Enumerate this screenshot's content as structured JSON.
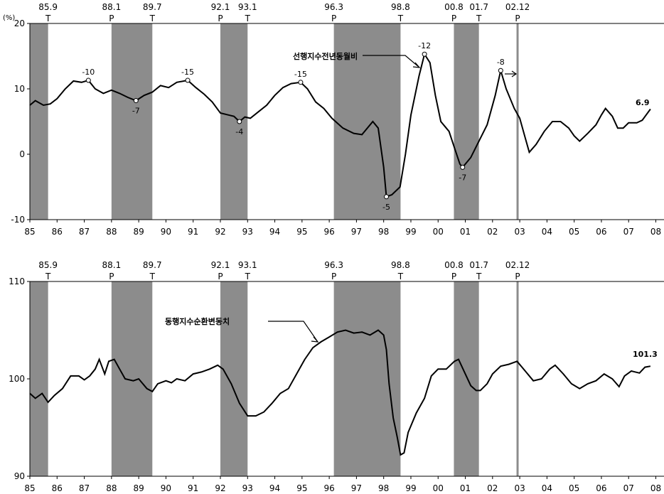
{
  "chart_data": [
    {
      "type": "line",
      "y_unit": "(%)",
      "xlim": [
        1985,
        2008.3
      ],
      "ylim": [
        -10,
        20
      ],
      "y_ticks": [
        -10,
        0,
        10,
        20
      ],
      "x_tick_labels": [
        "85",
        "86",
        "87",
        "88",
        "89",
        "90",
        "91",
        "92",
        "93",
        "94",
        "95",
        "96",
        "97",
        "98",
        "99",
        "00",
        "01",
        "02",
        "03",
        "04",
        "05",
        "06",
        "07",
        "08"
      ],
      "series_label": "선행지수전년동월비",
      "end_label": "6.9",
      "cycle_markers": [
        {
          "label": "85.9",
          "type": "T",
          "t": 1985.67
        },
        {
          "label": "88.1",
          "type": "P",
          "t": 1988.0
        },
        {
          "label": "89.7",
          "type": "T",
          "t": 1989.5
        },
        {
          "label": "92.1",
          "type": "P",
          "t": 1992.0
        },
        {
          "label": "93.1",
          "type": "T",
          "t": 1993.0
        },
        {
          "label": "96.3",
          "type": "P",
          "t": 1996.17
        },
        {
          "label": "98.8",
          "type": "T",
          "t": 1998.62
        },
        {
          "label": "00.8",
          "type": "P",
          "t": 2000.58
        },
        {
          "label": "01.7",
          "type": "T",
          "t": 2001.5
        },
        {
          "label": "02.12",
          "type": "P",
          "t": 2002.92
        }
      ],
      "annotations": [
        {
          "text": "-10",
          "t": 1987.15,
          "v": 11.3,
          "pos": "above"
        },
        {
          "text": "-7",
          "t": 1988.9,
          "v": 8.2,
          "pos": "below"
        },
        {
          "text": "-15",
          "t": 1990.8,
          "v": 11.3,
          "pos": "above"
        },
        {
          "text": "-4",
          "t": 1992.7,
          "v": 5.0,
          "pos": "below"
        },
        {
          "text": "-15",
          "t": 1994.95,
          "v": 11.0,
          "pos": "above"
        },
        {
          "text": "-5",
          "t": 1998.1,
          "v": -6.5,
          "pos": "below"
        },
        {
          "text": "-12",
          "t": 1999.5,
          "v": 15.3,
          "pos": "above"
        },
        {
          "text": "-7",
          "t": 2000.9,
          "v": -2.0,
          "pos": "below"
        },
        {
          "text": "-8",
          "t": 2002.3,
          "v": 12.8,
          "pos": "above"
        }
      ],
      "series": [
        {
          "values": [
            [
              1985.0,
              7.5
            ],
            [
              1985.2,
              8.2
            ],
            [
              1985.5,
              7.5
            ],
            [
              1985.75,
              7.7
            ],
            [
              1986.0,
              8.5
            ],
            [
              1986.3,
              10.0
            ],
            [
              1986.6,
              11.2
            ],
            [
              1986.9,
              11.0
            ],
            [
              1987.15,
              11.3
            ],
            [
              1987.4,
              10.0
            ],
            [
              1987.7,
              9.3
            ],
            [
              1988.0,
              9.8
            ],
            [
              1988.3,
              9.3
            ],
            [
              1988.6,
              8.7
            ],
            [
              1988.9,
              8.2
            ],
            [
              1989.2,
              9.0
            ],
            [
              1989.5,
              9.5
            ],
            [
              1989.8,
              10.5
            ],
            [
              1990.1,
              10.2
            ],
            [
              1990.4,
              11.0
            ],
            [
              1990.8,
              11.3
            ],
            [
              1991.1,
              10.2
            ],
            [
              1991.4,
              9.2
            ],
            [
              1991.7,
              8.0
            ],
            [
              1992.0,
              6.3
            ],
            [
              1992.3,
              6.0
            ],
            [
              1992.5,
              5.8
            ],
            [
              1992.7,
              5.0
            ],
            [
              1992.9,
              5.7
            ],
            [
              1993.1,
              5.5
            ],
            [
              1993.4,
              6.5
            ],
            [
              1993.7,
              7.5
            ],
            [
              1994.0,
              9.0
            ],
            [
              1994.3,
              10.2
            ],
            [
              1994.6,
              10.8
            ],
            [
              1994.95,
              11.0
            ],
            [
              1995.2,
              10.0
            ],
            [
              1995.5,
              8.0
            ],
            [
              1995.8,
              7.0
            ],
            [
              1996.1,
              5.5
            ],
            [
              1996.5,
              4.0
            ],
            [
              1996.9,
              3.2
            ],
            [
              1997.2,
              3.0
            ],
            [
              1997.6,
              5.0
            ],
            [
              1997.8,
              4.0
            ],
            [
              1998.0,
              -2.0
            ],
            [
              1998.1,
              -6.5
            ],
            [
              1998.3,
              -6.2
            ],
            [
              1998.6,
              -5.0
            ],
            [
              1998.8,
              0.0
            ],
            [
              1999.0,
              6.0
            ],
            [
              1999.3,
              12.0
            ],
            [
              1999.5,
              15.3
            ],
            [
              1999.7,
              14.0
            ],
            [
              1999.9,
              9.0
            ],
            [
              2000.1,
              5.0
            ],
            [
              2000.4,
              3.5
            ],
            [
              2000.6,
              1.0
            ],
            [
              2000.8,
              -1.5
            ],
            [
              2000.9,
              -2.0
            ],
            [
              2001.2,
              -0.5
            ],
            [
              2001.5,
              2.0
            ],
            [
              2001.8,
              4.5
            ],
            [
              2002.1,
              9.0
            ],
            [
              2002.3,
              12.8
            ],
            [
              2002.5,
              10.0
            ],
            [
              2002.8,
              7.0
            ],
            [
              2003.0,
              5.5
            ],
            [
              2003.2,
              2.5
            ],
            [
              2003.35,
              0.3
            ],
            [
              2003.6,
              1.5
            ],
            [
              2003.9,
              3.5
            ],
            [
              2004.2,
              5.0
            ],
            [
              2004.5,
              5.0
            ],
            [
              2004.8,
              4.0
            ],
            [
              2005.0,
              2.8
            ],
            [
              2005.2,
              2.0
            ],
            [
              2005.5,
              3.2
            ],
            [
              2005.8,
              4.5
            ],
            [
              2006.0,
              6.0
            ],
            [
              2006.15,
              7.0
            ],
            [
              2006.4,
              5.8
            ],
            [
              2006.6,
              4.0
            ],
            [
              2006.8,
              4.0
            ],
            [
              2007.0,
              4.8
            ],
            [
              2007.3,
              4.8
            ],
            [
              2007.5,
              5.2
            ],
            [
              2007.8,
              6.9
            ]
          ]
        }
      ]
    },
    {
      "type": "line",
      "xlim": [
        1985,
        2008.3
      ],
      "ylim": [
        90,
        110
      ],
      "y_ticks": [
        90,
        100,
        110
      ],
      "x_tick_labels": [
        "85",
        "86",
        "87",
        "88",
        "89",
        "90",
        "91",
        "92",
        "93",
        "94",
        "95",
        "96",
        "97",
        "98",
        "99",
        "00",
        "01",
        "02",
        "03",
        "04",
        "05",
        "06",
        "07",
        "08"
      ],
      "series_label": "동행지수순환변동치",
      "end_label": "101.3",
      "cycle_markers": [
        {
          "label": "85.9",
          "type": "T",
          "t": 1985.67
        },
        {
          "label": "88.1",
          "type": "P",
          "t": 1988.0
        },
        {
          "label": "89.7",
          "type": "T",
          "t": 1989.5
        },
        {
          "label": "92.1",
          "type": "P",
          "t": 1992.0
        },
        {
          "label": "93.1",
          "type": "T",
          "t": 1993.0
        },
        {
          "label": "96.3",
          "type": "P",
          "t": 1996.17
        },
        {
          "label": "98.8",
          "type": "T",
          "t": 1998.62
        },
        {
          "label": "00.8",
          "type": "P",
          "t": 2000.58
        },
        {
          "label": "01.7",
          "type": "T",
          "t": 2001.5
        },
        {
          "label": "02.12",
          "type": "P",
          "t": 2002.92
        }
      ],
      "series": [
        {
          "values": [
            [
              1985.0,
              98.5
            ],
            [
              1985.2,
              98.0
            ],
            [
              1985.45,
              98.5
            ],
            [
              1985.67,
              97.6
            ],
            [
              1985.9,
              98.3
            ],
            [
              1986.2,
              99.0
            ],
            [
              1986.5,
              100.3
            ],
            [
              1986.8,
              100.3
            ],
            [
              1987.0,
              99.9
            ],
            [
              1987.2,
              100.3
            ],
            [
              1987.4,
              101.0
            ],
            [
              1987.55,
              102.0
            ],
            [
              1987.75,
              100.5
            ],
            [
              1987.9,
              101.8
            ],
            [
              1988.1,
              102.0
            ],
            [
              1988.3,
              101.0
            ],
            [
              1988.5,
              100.0
            ],
            [
              1988.8,
              99.8
            ],
            [
              1989.0,
              100.0
            ],
            [
              1989.3,
              99.0
            ],
            [
              1989.5,
              98.7
            ],
            [
              1989.7,
              99.5
            ],
            [
              1990.0,
              99.8
            ],
            [
              1990.2,
              99.6
            ],
            [
              1990.4,
              100.0
            ],
            [
              1990.7,
              99.8
            ],
            [
              1991.0,
              100.5
            ],
            [
              1991.3,
              100.7
            ],
            [
              1991.6,
              101.0
            ],
            [
              1991.9,
              101.4
            ],
            [
              1992.1,
              101.0
            ],
            [
              1992.4,
              99.5
            ],
            [
              1992.7,
              97.5
            ],
            [
              1993.0,
              96.2
            ],
            [
              1993.3,
              96.2
            ],
            [
              1993.6,
              96.6
            ],
            [
              1993.9,
              97.5
            ],
            [
              1994.2,
              98.5
            ],
            [
              1994.5,
              99.0
            ],
            [
              1994.8,
              100.5
            ],
            [
              1995.1,
              102.0
            ],
            [
              1995.4,
              103.2
            ],
            [
              1995.7,
              103.8
            ],
            [
              1996.0,
              104.3
            ],
            [
              1996.3,
              104.8
            ],
            [
              1996.6,
              105.0
            ],
            [
              1996.9,
              104.7
            ],
            [
              1997.2,
              104.8
            ],
            [
              1997.5,
              104.5
            ],
            [
              1997.8,
              105.0
            ],
            [
              1998.0,
              104.5
            ],
            [
              1998.1,
              103.0
            ],
            [
              1998.2,
              99.5
            ],
            [
              1998.35,
              96.0
            ],
            [
              1998.5,
              94.0
            ],
            [
              1998.62,
              92.2
            ],
            [
              1998.75,
              92.4
            ],
            [
              1998.9,
              94.5
            ],
            [
              1999.2,
              96.5
            ],
            [
              1999.5,
              98.0
            ],
            [
              1999.75,
              100.3
            ],
            [
              2000.0,
              101.0
            ],
            [
              2000.3,
              101.0
            ],
            [
              2000.6,
              101.8
            ],
            [
              2000.75,
              102.0
            ],
            [
              2001.0,
              100.5
            ],
            [
              2001.2,
              99.3
            ],
            [
              2001.4,
              98.8
            ],
            [
              2001.55,
              98.8
            ],
            [
              2001.8,
              99.5
            ],
            [
              2002.0,
              100.5
            ],
            [
              2002.3,
              101.3
            ],
            [
              2002.6,
              101.5
            ],
            [
              2002.9,
              101.8
            ],
            [
              2003.2,
              100.8
            ],
            [
              2003.5,
              99.8
            ],
            [
              2003.8,
              100.0
            ],
            [
              2004.1,
              101.0
            ],
            [
              2004.3,
              101.4
            ],
            [
              2004.6,
              100.5
            ],
            [
              2004.9,
              99.5
            ],
            [
              2005.2,
              99.0
            ],
            [
              2005.5,
              99.5
            ],
            [
              2005.8,
              99.8
            ],
            [
              2006.1,
              100.5
            ],
            [
              2006.4,
              100.0
            ],
            [
              2006.65,
              99.2
            ],
            [
              2006.85,
              100.3
            ],
            [
              2007.1,
              100.8
            ],
            [
              2007.4,
              100.6
            ],
            [
              2007.6,
              101.2
            ],
            [
              2007.8,
              101.3
            ]
          ]
        }
      ]
    }
  ]
}
